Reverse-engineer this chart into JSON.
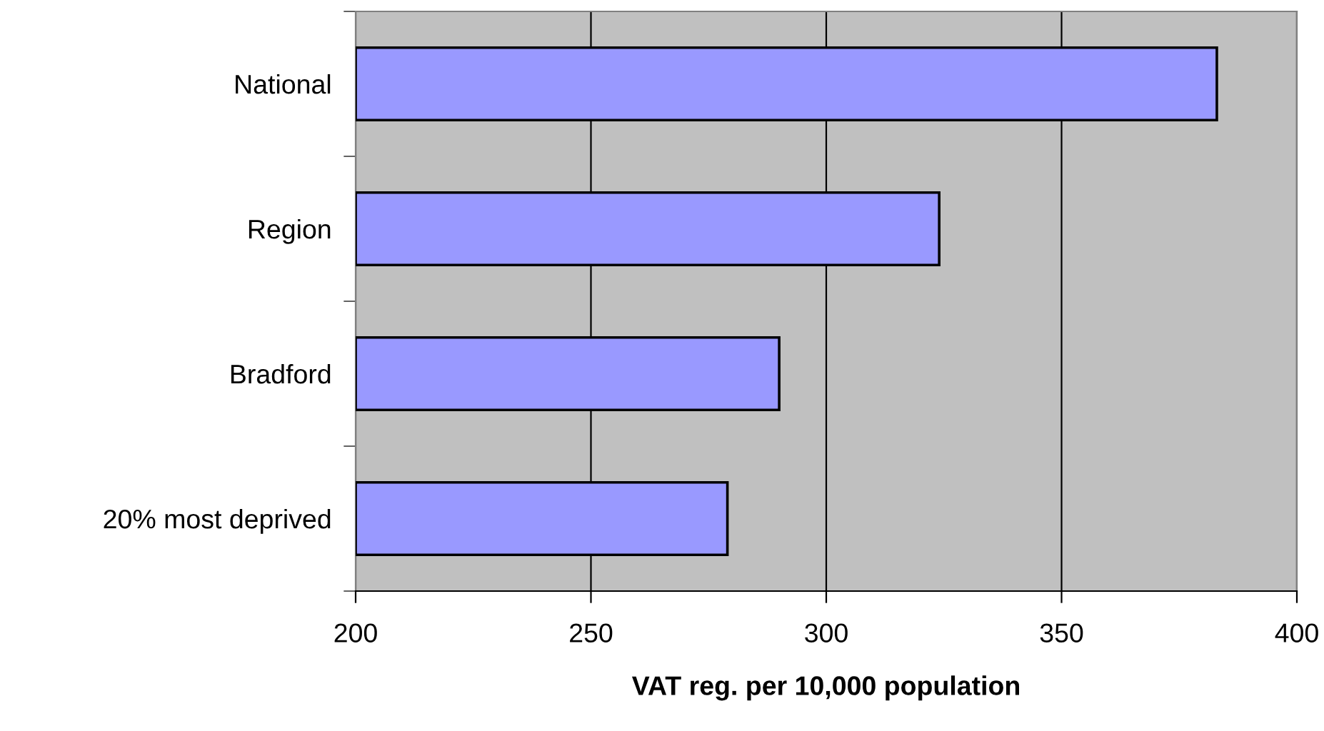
{
  "chart_data": {
    "type": "bar",
    "orientation": "horizontal",
    "categories": [
      "National",
      "Region",
      "Bradford",
      "20% most deprived"
    ],
    "values": [
      383,
      324,
      290,
      279
    ],
    "color": "#9999ff",
    "xlim": [
      200,
      400
    ],
    "xticks": [
      200,
      250,
      300,
      350,
      400
    ],
    "xlabel": "VAT reg. per 10,000 population",
    "grid": "x"
  }
}
